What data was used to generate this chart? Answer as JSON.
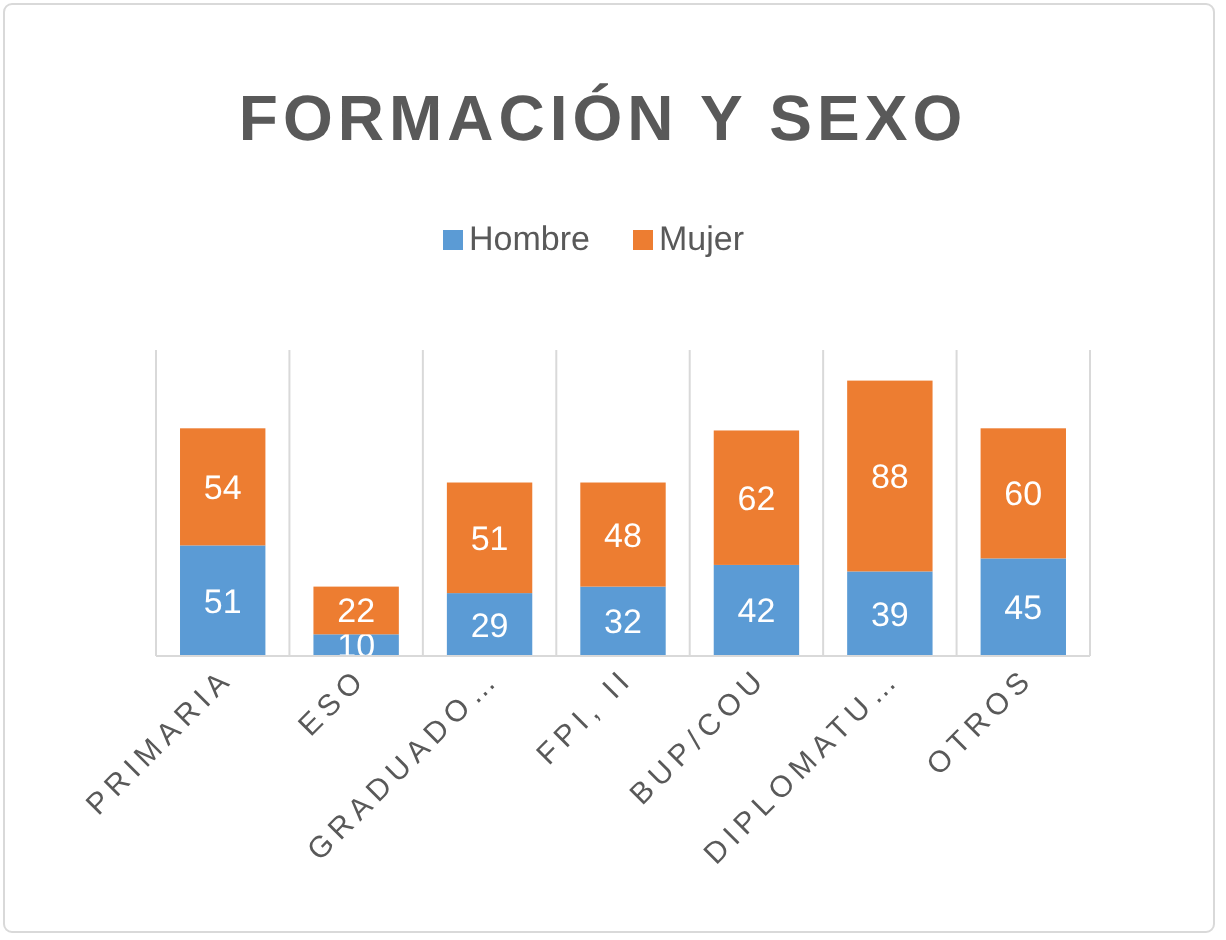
{
  "chart_data": {
    "type": "bar",
    "title": "FORMACIÓN  Y SEXO",
    "categories": [
      "PRIMARIA",
      "ESO",
      "GRADUADO…",
      "FPI, II",
      "BUP/COU",
      "DIPLOMATU…",
      "OTROS"
    ],
    "stacked": true,
    "data_labels": true,
    "legend": "top",
    "grid": "x",
    "series": [
      {
        "name": "Hombre",
        "color": "#5b9bd5",
        "values": [
          51,
          10,
          29,
          32,
          42,
          39,
          45
        ]
      },
      {
        "name": "Mujer",
        "color": "#ed7d31",
        "values": [
          54,
          22,
          51,
          48,
          62,
          88,
          60
        ]
      }
    ]
  }
}
